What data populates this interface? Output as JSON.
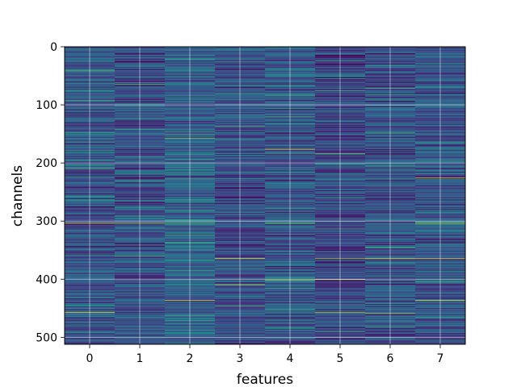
{
  "chart_data": {
    "type": "heatmap",
    "title": "",
    "xlabel": "features",
    "ylabel": "channels",
    "x_categories": [
      "0",
      "1",
      "2",
      "3",
      "4",
      "5",
      "6",
      "7"
    ],
    "x_range": [
      -0.5,
      7.5
    ],
    "y_range": [
      512,
      0
    ],
    "y_ticks": [
      0,
      100,
      200,
      300,
      400,
      500
    ],
    "rows": 512,
    "columns": 8,
    "colormap": "viridis",
    "grid": true,
    "values_note_random_seed": 7,
    "highlight_cells": [
      {
        "col": 0,
        "row": 303,
        "value": 0.95
      },
      {
        "col": 0,
        "row": 457,
        "value": 0.98
      },
      {
        "col": 0,
        "row": 163,
        "value": 0.62
      },
      {
        "col": 1,
        "row": 303,
        "value": 0.88
      },
      {
        "col": 1,
        "row": 360,
        "value": 0.7
      },
      {
        "col": 2,
        "row": 436,
        "value": 0.95
      },
      {
        "col": 2,
        "row": 303,
        "value": 0.75
      },
      {
        "col": 3,
        "row": 364,
        "value": 0.97
      },
      {
        "col": 3,
        "row": 409,
        "value": 0.9
      },
      {
        "col": 3,
        "row": 136,
        "value": 0.7
      },
      {
        "col": 4,
        "row": 176,
        "value": 0.95
      },
      {
        "col": 4,
        "row": 401,
        "value": 0.85
      },
      {
        "col": 4,
        "row": 303,
        "value": 0.78
      },
      {
        "col": 5,
        "row": 364,
        "value": 0.85
      },
      {
        "col": 5,
        "row": 400,
        "value": 0.9
      },
      {
        "col": 5,
        "row": 457,
        "value": 0.92
      },
      {
        "col": 5,
        "row": 183,
        "value": 0.75
      },
      {
        "col": 6,
        "row": 364,
        "value": 0.95
      },
      {
        "col": 6,
        "row": 458,
        "value": 0.85
      },
      {
        "col": 6,
        "row": 148,
        "value": 0.7
      },
      {
        "col": 7,
        "row": 225,
        "value": 0.95
      },
      {
        "col": 7,
        "row": 303,
        "value": 0.9
      },
      {
        "col": 7,
        "row": 364,
        "value": 0.95
      },
      {
        "col": 7,
        "row": 436,
        "value": 0.95
      }
    ]
  }
}
